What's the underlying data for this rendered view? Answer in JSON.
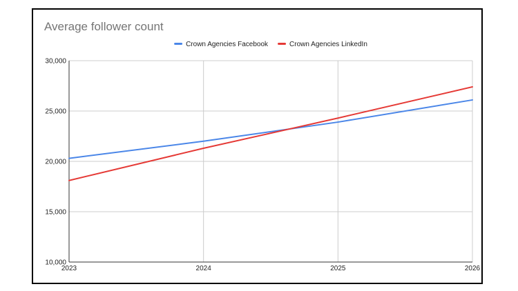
{
  "chart_data": {
    "type": "line",
    "title": "Average follower count",
    "xlabel": "",
    "ylabel": "",
    "x": [
      "2023",
      "2024",
      "2025",
      "2026"
    ],
    "ylim": [
      10000,
      30000
    ],
    "yticks": [
      10000,
      15000,
      20000,
      25000,
      30000
    ],
    "ytick_labels": [
      "10,000",
      "15,000",
      "20,000",
      "25,000",
      "30,000"
    ],
    "grid": true,
    "legend_position": "top",
    "series": [
      {
        "name": "Crown Agencies Facebook",
        "color": "#4a86e8",
        "values": [
          20300,
          22000,
          23900,
          26100
        ]
      },
      {
        "name": "Crown Agencies LinkedIn",
        "color": "#e53935",
        "values": [
          18100,
          21300,
          24300,
          27400
        ]
      }
    ]
  }
}
